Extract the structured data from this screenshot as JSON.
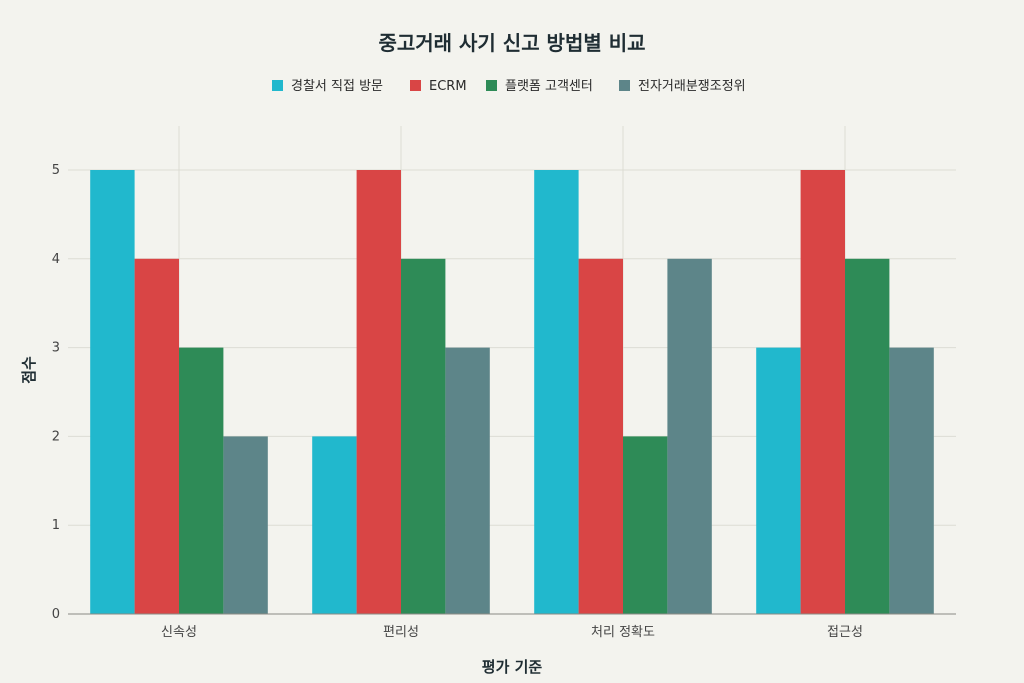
{
  "chart_data": {
    "type": "bar",
    "title": "중고거래 사기 신고 방법별 비교",
    "xlabel": "평가 기준",
    "ylabel": "점수",
    "categories": [
      "신속성",
      "편리성",
      "처리 정확도",
      "접근성"
    ],
    "series": [
      {
        "name": "경찰서 직접 방문",
        "color": "#21b8cd",
        "values": [
          5,
          2,
          5,
          3
        ]
      },
      {
        "name": "ECRM",
        "color": "#d94545",
        "values": [
          4,
          5,
          4,
          5
        ]
      },
      {
        "name": "플랫폼 고객센터",
        "color": "#2e8b57",
        "values": [
          3,
          4,
          2,
          4
        ]
      },
      {
        "name": "전자거래분쟁조정위",
        "color": "#5d8589",
        "values": [
          2,
          3,
          4,
          3
        ]
      }
    ],
    "ylim": [
      0,
      5
    ],
    "yticks": [
      0,
      1,
      2,
      3,
      4,
      5
    ],
    "grid": true,
    "legend_position": "top-center"
  }
}
